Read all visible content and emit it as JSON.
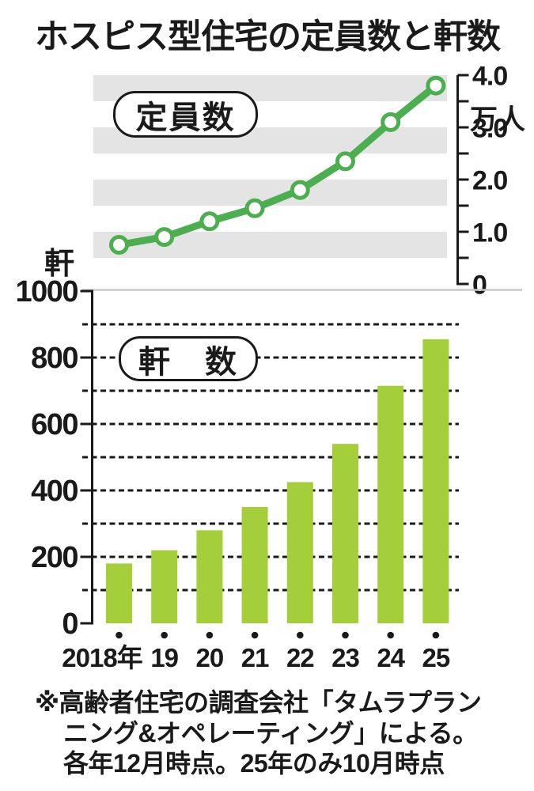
{
  "title": "ホスピス型住宅の定員数と軒数",
  "colors": {
    "ink": "#1a1a1a",
    "line_green": "#4bae4f",
    "bar_green": "#a5ce3b",
    "stripe_gray": "#e4e4e4",
    "top_rule_gray": "#c8c8c8"
  },
  "footnote": {
    "line1": "※高齢者住宅の調査会社「タムラプラン",
    "line2": "ニング&オペレーティング」による。",
    "line3": "各年12月時点。25年のみ10月時点"
  },
  "chart_data": [
    {
      "type": "line",
      "title": "定員数",
      "title_display": "定員数",
      "unit_label": "万人",
      "x": [
        "2018",
        "19",
        "20",
        "21",
        "22",
        "23",
        "24",
        "25"
      ],
      "values": [
        0.75,
        0.9,
        1.2,
        1.45,
        1.8,
        2.35,
        3.1,
        3.8
      ],
      "ylim": [
        0,
        4.0
      ],
      "yticks": [
        0,
        0.5,
        1.0,
        1.5,
        2.0,
        2.5,
        3.0,
        3.5,
        4.0
      ],
      "ytick_labels": [
        "0",
        "",
        "1.0",
        "",
        "2.0",
        "",
        "3.0",
        "",
        "4.0"
      ],
      "axis_side": "right",
      "background": "alternating gray stripes every 0.5",
      "legend_position": "inline badge top-left"
    },
    {
      "type": "bar",
      "title": "軒数",
      "title_display": "軒　数",
      "unit_label": "軒",
      "categories": [
        "2018年",
        "19",
        "20",
        "21",
        "22",
        "23",
        "24",
        "25"
      ],
      "values": [
        180,
        220,
        280,
        350,
        425,
        540,
        715,
        855
      ],
      "ylim": [
        0,
        1000
      ],
      "yticks_labeled": [
        0,
        200,
        400,
        600,
        800,
        1000
      ],
      "gridlines_dashed": [
        100,
        200,
        300,
        400,
        500,
        600,
        700,
        800,
        900
      ],
      "axis_side": "left",
      "legend_position": "inline badge top-left"
    }
  ]
}
